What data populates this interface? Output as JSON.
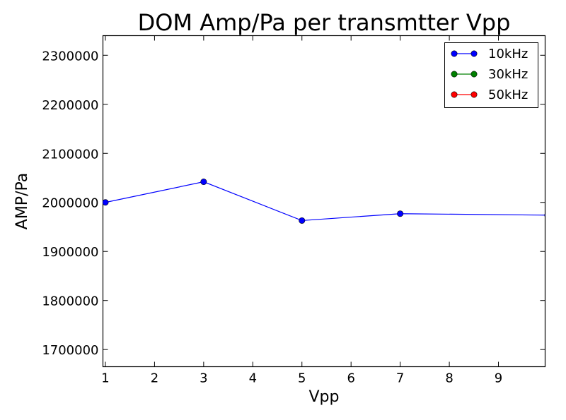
{
  "chart_data": {
    "type": "line",
    "title": "DOM Amp/Pa per transmtter Vpp",
    "xlabel": "Vpp",
    "ylabel": "AMP/Pa",
    "xlim": [
      0.95,
      9.95
    ],
    "ylim": [
      1665000,
      2340000
    ],
    "x_ticks": [
      1,
      2,
      3,
      4,
      5,
      6,
      7,
      8,
      9
    ],
    "y_ticks": [
      1700000,
      1800000,
      1900000,
      2000000,
      2100000,
      2200000,
      2300000
    ],
    "grid": false,
    "legend_position": "top-right",
    "series": [
      {
        "name": "10kHz",
        "color": "#0000ff",
        "marker": "circle",
        "x": [
          1,
          3,
          5,
          7,
          10
        ],
        "y": [
          2000000,
          2042000,
          1963000,
          1977000,
          1974000
        ]
      },
      {
        "name": "30kHz",
        "color": "#008000",
        "marker": "circle",
        "x": [],
        "y": []
      },
      {
        "name": "50kHz",
        "color": "#ff0000",
        "marker": "circle",
        "x": [],
        "y": []
      }
    ]
  }
}
